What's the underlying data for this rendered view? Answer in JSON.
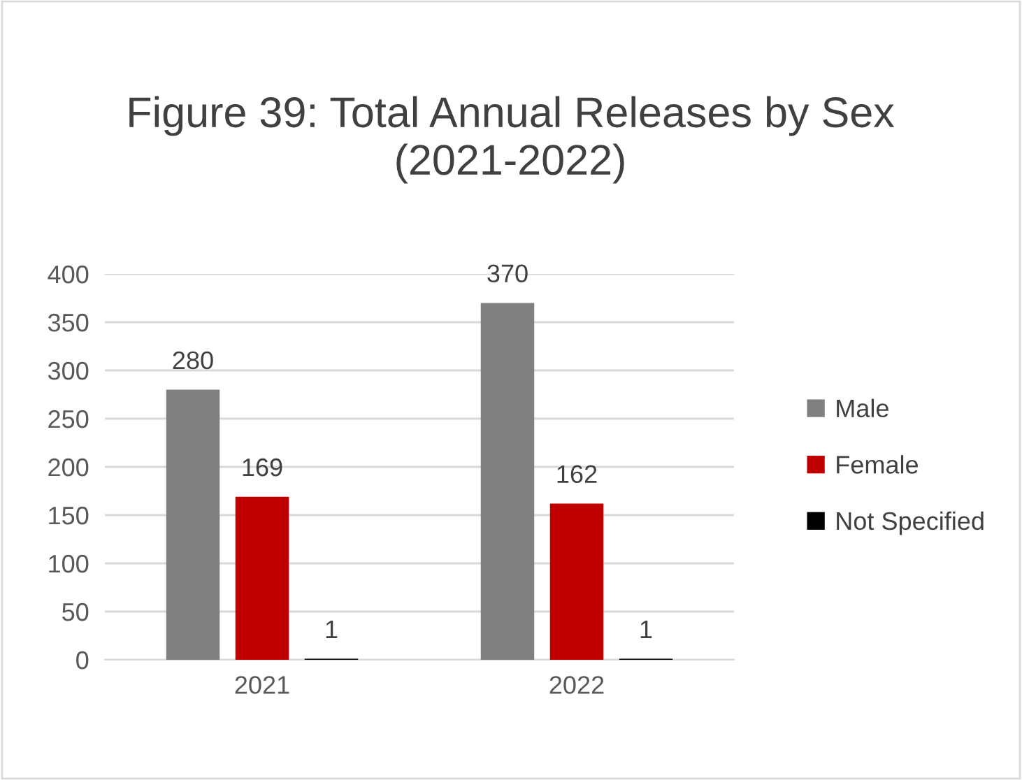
{
  "chart_data": {
    "type": "bar",
    "title": "Figure 39: Total Annual Releases by Sex\n(2021-2022)",
    "categories": [
      "2021",
      "2022"
    ],
    "series": [
      {
        "name": "Male",
        "color": "#808080",
        "values": [
          280,
          370
        ]
      },
      {
        "name": "Female",
        "color": "#c00000",
        "values": [
          169,
          162
        ]
      },
      {
        "name": "Not Specified",
        "color": "#000000",
        "values": [
          1,
          1
        ]
      }
    ],
    "ylim": [
      0,
      400
    ],
    "yticks": [
      0,
      50,
      100,
      150,
      200,
      250,
      300,
      350,
      400
    ],
    "grid": "y",
    "legend": "right",
    "data_labels": true
  }
}
